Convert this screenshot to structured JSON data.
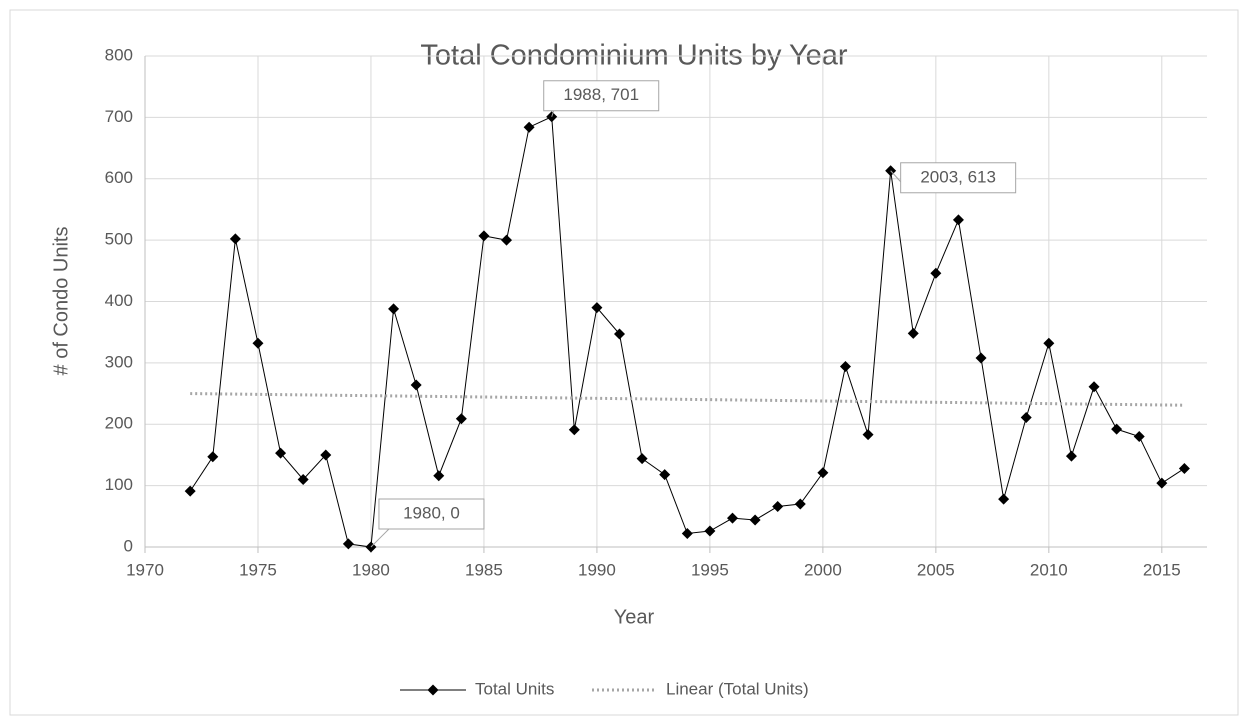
{
  "chart_data": {
    "type": "line",
    "title": "Total Condominium Units by Year",
    "xlabel": "Year",
    "ylabel": "# of Condo Units",
    "xlim": [
      1970,
      2017
    ],
    "xticks": [
      1970,
      1975,
      1980,
      1985,
      1990,
      1995,
      2000,
      2005,
      2010,
      2015
    ],
    "ylim": [
      0,
      800
    ],
    "yticks": [
      0,
      100,
      200,
      300,
      400,
      500,
      600,
      700,
      800
    ],
    "grid": true,
    "legend": "bottom",
    "series": [
      {
        "name": "Total Units",
        "color": "#000000",
        "marker": "diamond",
        "x": [
          1972,
          1973,
          1974,
          1975,
          1976,
          1977,
          1978,
          1979,
          1980,
          1981,
          1982,
          1983,
          1984,
          1985,
          1986,
          1987,
          1988,
          1989,
          1990,
          1991,
          1992,
          1993,
          1994,
          1995,
          1996,
          1997,
          1998,
          1999,
          2000,
          2001,
          2002,
          2003,
          2004,
          2005,
          2006,
          2007,
          2008,
          2009,
          2010,
          2011,
          2012,
          2013,
          2014,
          2015,
          2016
        ],
        "values": [
          91,
          147,
          502,
          332,
          153,
          110,
          150,
          5,
          0,
          388,
          264,
          116,
          209,
          507,
          500,
          684,
          701,
          191,
          390,
          347,
          144,
          118,
          22,
          26,
          47,
          44,
          66,
          70,
          121,
          294,
          183,
          613,
          348,
          446,
          533,
          308,
          78,
          211,
          332,
          148,
          261,
          192,
          180,
          104,
          128
        ],
        "value_labels": [
          null,
          null,
          null,
          null,
          null,
          null,
          null,
          null,
          "1980, 0",
          null,
          null,
          null,
          null,
          null,
          null,
          null,
          "1988, 701",
          null,
          null,
          null,
          null,
          null,
          null,
          null,
          null,
          null,
          null,
          null,
          null,
          null,
          null,
          "2003, 613",
          null,
          null,
          null,
          null,
          null,
          null,
          null,
          null,
          null,
          null,
          null,
          null,
          null
        ]
      },
      {
        "name": "Linear (Total Units)",
        "color": "#a6a6a6",
        "dash": "dotted",
        "x": [
          1972,
          2016
        ],
        "values": [
          250,
          231
        ]
      }
    ]
  }
}
